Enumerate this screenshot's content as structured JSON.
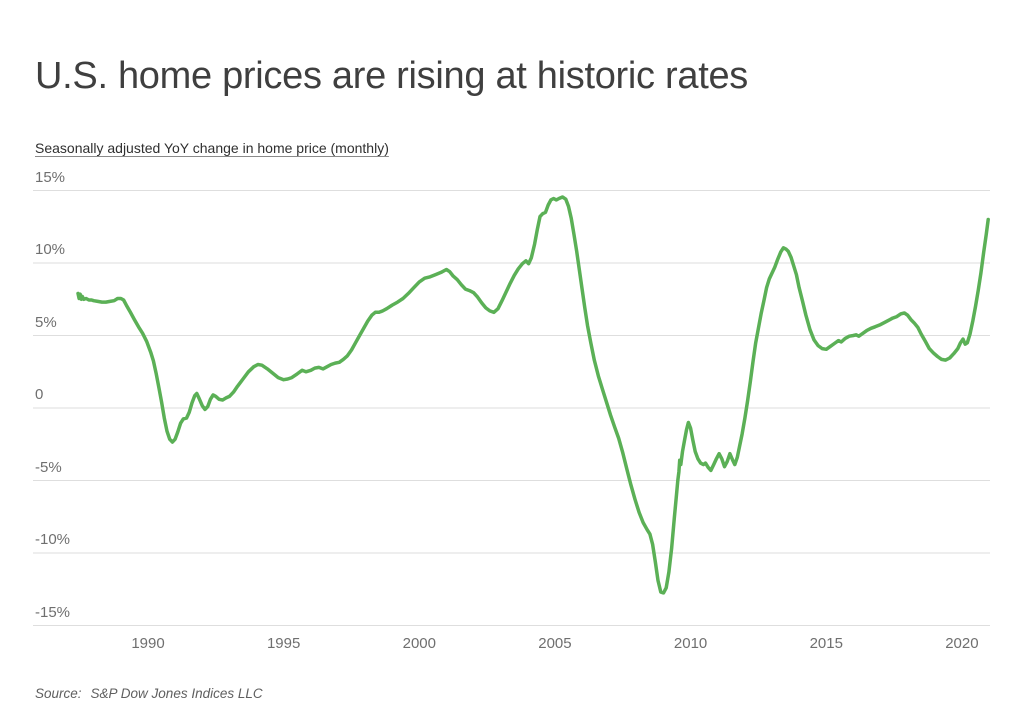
{
  "header": {
    "title": "U.S. home prices are rising at historic rates",
    "subtitle": "Seasonally adjusted YoY change in home price (monthly)"
  },
  "footer": {
    "source_label": "Source:",
    "source_text": "S&P Dow Jones Indices LLC"
  },
  "chart_data": {
    "type": "line",
    "title": "U.S. home prices are rising at historic rates",
    "subtitle": "Seasonally adjusted YoY change in home price (monthly)",
    "source": "S&P Dow Jones Indices LLC",
    "xlabel": "",
    "ylabel": "Seasonally adjusted YoY change in home price (%)",
    "xlim": [
      1987.3,
      2021.3
    ],
    "ylim": [
      -15,
      15
    ],
    "grid": "horizontal",
    "legend": "none",
    "colors": {
      "line": "#5bb056",
      "gridline": "#dedede",
      "tick_text": "#6f6f6f"
    },
    "x_ticks": [
      {
        "label": "1990",
        "value": 1990
      },
      {
        "label": "1995",
        "value": 1995
      },
      {
        "label": "2000",
        "value": 2000
      },
      {
        "label": "2005",
        "value": 2005
      },
      {
        "label": "2010",
        "value": 2010
      },
      {
        "label": "2015",
        "value": 2015
      },
      {
        "label": "2020",
        "value": 2020
      }
    ],
    "y_ticks": [
      {
        "label": "15%",
        "value": 15
      },
      {
        "label": "10%",
        "value": 10
      },
      {
        "label": "5%",
        "value": 5
      },
      {
        "label": "0",
        "value": 0
      },
      {
        "label": "-5%",
        "value": -5
      },
      {
        "label": "-10%",
        "value": -10
      },
      {
        "label": "-15%",
        "value": -15
      }
    ],
    "series": [
      {
        "name": "YoY change in home price",
        "color": "#5bb056",
        "points": [
          [
            1987.42,
            7.9
          ],
          [
            1987.46,
            7.55
          ],
          [
            1987.5,
            7.85
          ],
          [
            1987.54,
            7.5
          ],
          [
            1987.58,
            7.7
          ],
          [
            1987.63,
            7.5
          ],
          [
            1987.72,
            7.55
          ],
          [
            1987.82,
            7.45
          ],
          [
            1987.92,
            7.45
          ],
          [
            1988.0,
            7.4
          ],
          [
            1988.15,
            7.35
          ],
          [
            1988.3,
            7.3
          ],
          [
            1988.45,
            7.3
          ],
          [
            1988.6,
            7.35
          ],
          [
            1988.75,
            7.4
          ],
          [
            1988.88,
            7.55
          ],
          [
            1989.0,
            7.55
          ],
          [
            1989.1,
            7.45
          ],
          [
            1989.2,
            7.1
          ],
          [
            1989.35,
            6.6
          ],
          [
            1989.5,
            6.1
          ],
          [
            1989.65,
            5.6
          ],
          [
            1989.8,
            5.15
          ],
          [
            1989.95,
            4.6
          ],
          [
            1990.1,
            3.85
          ],
          [
            1990.2,
            3.25
          ],
          [
            1990.3,
            2.4
          ],
          [
            1990.4,
            1.4
          ],
          [
            1990.5,
            0.4
          ],
          [
            1990.6,
            -0.7
          ],
          [
            1990.7,
            -1.6
          ],
          [
            1990.8,
            -2.15
          ],
          [
            1990.9,
            -2.35
          ],
          [
            1991.0,
            -2.15
          ],
          [
            1991.1,
            -1.65
          ],
          [
            1991.2,
            -1.05
          ],
          [
            1991.3,
            -0.75
          ],
          [
            1991.42,
            -0.7
          ],
          [
            1991.52,
            -0.3
          ],
          [
            1991.62,
            0.35
          ],
          [
            1991.72,
            0.85
          ],
          [
            1991.8,
            1.0
          ],
          [
            1991.9,
            0.6
          ],
          [
            1992.0,
            0.15
          ],
          [
            1992.1,
            -0.1
          ],
          [
            1992.2,
            0.1
          ],
          [
            1992.3,
            0.6
          ],
          [
            1992.4,
            0.9
          ],
          [
            1992.5,
            0.8
          ],
          [
            1992.62,
            0.6
          ],
          [
            1992.75,
            0.55
          ],
          [
            1992.88,
            0.7
          ],
          [
            1993.0,
            0.8
          ],
          [
            1993.15,
            1.1
          ],
          [
            1993.3,
            1.5
          ],
          [
            1993.5,
            2.0
          ],
          [
            1993.7,
            2.5
          ],
          [
            1993.9,
            2.85
          ],
          [
            1994.05,
            3.0
          ],
          [
            1994.2,
            2.95
          ],
          [
            1994.4,
            2.7
          ],
          [
            1994.6,
            2.4
          ],
          [
            1994.8,
            2.1
          ],
          [
            1995.0,
            1.95
          ],
          [
            1995.15,
            2.0
          ],
          [
            1995.3,
            2.1
          ],
          [
            1995.5,
            2.35
          ],
          [
            1995.68,
            2.6
          ],
          [
            1995.82,
            2.5
          ],
          [
            1996.0,
            2.6
          ],
          [
            1996.15,
            2.75
          ],
          [
            1996.3,
            2.8
          ],
          [
            1996.45,
            2.7
          ],
          [
            1996.6,
            2.85
          ],
          [
            1996.75,
            3.0
          ],
          [
            1996.9,
            3.1
          ],
          [
            1997.05,
            3.15
          ],
          [
            1997.2,
            3.35
          ],
          [
            1997.35,
            3.6
          ],
          [
            1997.5,
            4.0
          ],
          [
            1997.65,
            4.5
          ],
          [
            1997.8,
            5.0
          ],
          [
            1997.95,
            5.5
          ],
          [
            1998.1,
            6.0
          ],
          [
            1998.25,
            6.4
          ],
          [
            1998.38,
            6.6
          ],
          [
            1998.52,
            6.6
          ],
          [
            1998.65,
            6.7
          ],
          [
            1998.8,
            6.85
          ],
          [
            1999.0,
            7.1
          ],
          [
            1999.2,
            7.3
          ],
          [
            1999.4,
            7.55
          ],
          [
            1999.6,
            7.9
          ],
          [
            1999.8,
            8.3
          ],
          [
            2000.0,
            8.7
          ],
          [
            2000.2,
            8.95
          ],
          [
            2000.4,
            9.05
          ],
          [
            2000.6,
            9.2
          ],
          [
            2000.8,
            9.35
          ],
          [
            2001.0,
            9.55
          ],
          [
            2001.12,
            9.4
          ],
          [
            2001.25,
            9.1
          ],
          [
            2001.4,
            8.85
          ],
          [
            2001.55,
            8.5
          ],
          [
            2001.7,
            8.2
          ],
          [
            2001.85,
            8.1
          ],
          [
            2002.0,
            7.95
          ],
          [
            2002.15,
            7.65
          ],
          [
            2002.3,
            7.25
          ],
          [
            2002.45,
            6.9
          ],
          [
            2002.6,
            6.7
          ],
          [
            2002.75,
            6.6
          ],
          [
            2002.9,
            6.85
          ],
          [
            2003.05,
            7.4
          ],
          [
            2003.2,
            8.0
          ],
          [
            2003.35,
            8.6
          ],
          [
            2003.5,
            9.15
          ],
          [
            2003.65,
            9.6
          ],
          [
            2003.8,
            9.95
          ],
          [
            2003.93,
            10.15
          ],
          [
            2004.03,
            9.95
          ],
          [
            2004.13,
            10.35
          ],
          [
            2004.25,
            11.3
          ],
          [
            2004.35,
            12.3
          ],
          [
            2004.45,
            13.2
          ],
          [
            2004.55,
            13.4
          ],
          [
            2004.65,
            13.5
          ],
          [
            2004.75,
            14.0
          ],
          [
            2004.85,
            14.35
          ],
          [
            2004.95,
            14.45
          ],
          [
            2005.05,
            14.35
          ],
          [
            2005.15,
            14.45
          ],
          [
            2005.28,
            14.55
          ],
          [
            2005.4,
            14.4
          ],
          [
            2005.5,
            13.9
          ],
          [
            2005.6,
            13.1
          ],
          [
            2005.7,
            12.0
          ],
          [
            2005.8,
            10.8
          ],
          [
            2005.9,
            9.5
          ],
          [
            2006.0,
            8.2
          ],
          [
            2006.1,
            6.9
          ],
          [
            2006.2,
            5.7
          ],
          [
            2006.32,
            4.5
          ],
          [
            2006.45,
            3.3
          ],
          [
            2006.6,
            2.2
          ],
          [
            2006.75,
            1.3
          ],
          [
            2006.9,
            0.4
          ],
          [
            2007.05,
            -0.5
          ],
          [
            2007.2,
            -1.3
          ],
          [
            2007.35,
            -2.1
          ],
          [
            2007.5,
            -3.1
          ],
          [
            2007.65,
            -4.2
          ],
          [
            2007.8,
            -5.3
          ],
          [
            2007.95,
            -6.3
          ],
          [
            2008.1,
            -7.2
          ],
          [
            2008.25,
            -7.9
          ],
          [
            2008.4,
            -8.4
          ],
          [
            2008.5,
            -8.7
          ],
          [
            2008.6,
            -9.4
          ],
          [
            2008.7,
            -10.6
          ],
          [
            2008.8,
            -11.9
          ],
          [
            2008.9,
            -12.7
          ],
          [
            2009.0,
            -12.75
          ],
          [
            2009.1,
            -12.4
          ],
          [
            2009.2,
            -11.3
          ],
          [
            2009.3,
            -9.7
          ],
          [
            2009.4,
            -7.6
          ],
          [
            2009.47,
            -6.2
          ],
          [
            2009.53,
            -5.0
          ],
          [
            2009.57,
            -4.4
          ],
          [
            2009.6,
            -3.6
          ],
          [
            2009.64,
            -3.9
          ],
          [
            2009.7,
            -3.0
          ],
          [
            2009.78,
            -2.2
          ],
          [
            2009.85,
            -1.5
          ],
          [
            2009.92,
            -1.0
          ],
          [
            2010.0,
            -1.4
          ],
          [
            2010.08,
            -2.2
          ],
          [
            2010.17,
            -3.0
          ],
          [
            2010.27,
            -3.5
          ],
          [
            2010.37,
            -3.8
          ],
          [
            2010.47,
            -3.9
          ],
          [
            2010.55,
            -3.8
          ],
          [
            2010.65,
            -4.1
          ],
          [
            2010.75,
            -4.3
          ],
          [
            2010.85,
            -3.9
          ],
          [
            2010.95,
            -3.5
          ],
          [
            2011.05,
            -3.15
          ],
          [
            2011.15,
            -3.5
          ],
          [
            2011.25,
            -4.05
          ],
          [
            2011.35,
            -3.7
          ],
          [
            2011.45,
            -3.15
          ],
          [
            2011.55,
            -3.6
          ],
          [
            2011.63,
            -3.9
          ],
          [
            2011.72,
            -3.4
          ],
          [
            2011.8,
            -2.7
          ],
          [
            2011.9,
            -1.8
          ],
          [
            2012.0,
            -0.7
          ],
          [
            2012.1,
            0.5
          ],
          [
            2012.2,
            1.8
          ],
          [
            2012.3,
            3.2
          ],
          [
            2012.4,
            4.5
          ],
          [
            2012.5,
            5.5
          ],
          [
            2012.6,
            6.5
          ],
          [
            2012.7,
            7.4
          ],
          [
            2012.8,
            8.3
          ],
          [
            2012.9,
            8.9
          ],
          [
            2013.0,
            9.3
          ],
          [
            2013.1,
            9.7
          ],
          [
            2013.2,
            10.2
          ],
          [
            2013.32,
            10.75
          ],
          [
            2013.42,
            11.05
          ],
          [
            2013.52,
            10.95
          ],
          [
            2013.6,
            10.8
          ],
          [
            2013.7,
            10.4
          ],
          [
            2013.8,
            9.8
          ],
          [
            2013.9,
            9.2
          ],
          [
            2014.0,
            8.3
          ],
          [
            2014.12,
            7.4
          ],
          [
            2014.25,
            6.4
          ],
          [
            2014.4,
            5.4
          ],
          [
            2014.55,
            4.7
          ],
          [
            2014.7,
            4.3
          ],
          [
            2014.85,
            4.1
          ],
          [
            2015.0,
            4.05
          ],
          [
            2015.15,
            4.25
          ],
          [
            2015.3,
            4.45
          ],
          [
            2015.45,
            4.65
          ],
          [
            2015.55,
            4.55
          ],
          [
            2015.7,
            4.8
          ],
          [
            2015.85,
            4.95
          ],
          [
            2016.0,
            5.0
          ],
          [
            2016.1,
            5.05
          ],
          [
            2016.2,
            4.95
          ],
          [
            2016.35,
            5.15
          ],
          [
            2016.5,
            5.35
          ],
          [
            2016.65,
            5.5
          ],
          [
            2016.8,
            5.6
          ],
          [
            2017.0,
            5.75
          ],
          [
            2017.15,
            5.9
          ],
          [
            2017.3,
            6.05
          ],
          [
            2017.45,
            6.2
          ],
          [
            2017.6,
            6.3
          ],
          [
            2017.75,
            6.5
          ],
          [
            2017.88,
            6.55
          ],
          [
            2018.0,
            6.4
          ],
          [
            2018.12,
            6.1
          ],
          [
            2018.25,
            5.85
          ],
          [
            2018.38,
            5.55
          ],
          [
            2018.5,
            5.1
          ],
          [
            2018.65,
            4.6
          ],
          [
            2018.8,
            4.1
          ],
          [
            2018.95,
            3.8
          ],
          [
            2019.1,
            3.55
          ],
          [
            2019.25,
            3.35
          ],
          [
            2019.4,
            3.3
          ],
          [
            2019.55,
            3.45
          ],
          [
            2019.7,
            3.75
          ],
          [
            2019.85,
            4.1
          ],
          [
            2019.95,
            4.5
          ],
          [
            2020.04,
            4.75
          ],
          [
            2020.12,
            4.4
          ],
          [
            2020.2,
            4.5
          ],
          [
            2020.3,
            5.1
          ],
          [
            2020.4,
            6.0
          ],
          [
            2020.5,
            7.0
          ],
          [
            2020.6,
            8.1
          ],
          [
            2020.7,
            9.3
          ],
          [
            2020.8,
            10.7
          ],
          [
            2020.9,
            12.0
          ],
          [
            2020.97,
            13.0
          ]
        ]
      }
    ]
  }
}
